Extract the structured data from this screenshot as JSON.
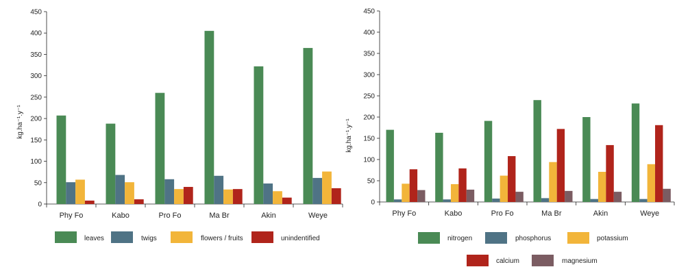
{
  "chart_data": [
    {
      "type": "bar",
      "categories": [
        "Phy Fo",
        "Kabo",
        "Pro Fo",
        "Ma Br",
        "Akin",
        "Weye"
      ],
      "ylabel": "kg.ha⁻¹.y⁻¹",
      "ylim": [
        0,
        450
      ],
      "yticks": [
        0,
        50,
        100,
        150,
        200,
        250,
        300,
        350,
        400,
        450
      ],
      "grid": false,
      "legend_position": "bottom",
      "series": [
        {
          "name": "leaves",
          "color": "#4a8a55",
          "values": [
            207,
            188,
            260,
            405,
            322,
            365
          ]
        },
        {
          "name": "twigs",
          "color": "#4f7385",
          "values": [
            51,
            68,
            58,
            66,
            48,
            61
          ]
        },
        {
          "name": "flowers / fruits",
          "color": "#f2b53a",
          "values": [
            57,
            51,
            35,
            34,
            30,
            76
          ]
        },
        {
          "name": "unindentified",
          "color": "#b0241b",
          "values": [
            8,
            11,
            40,
            35,
            15,
            37
          ]
        }
      ]
    },
    {
      "type": "bar",
      "categories": [
        "Phy Fo",
        "Kabo",
        "Pro Fo",
        "Ma Br",
        "Akin",
        "Weye"
      ],
      "ylabel": "kg.ha⁻¹.y⁻¹",
      "ylim": [
        0,
        450
      ],
      "yticks": [
        0,
        50,
        100,
        150,
        200,
        250,
        300,
        350,
        400,
        450
      ],
      "grid": false,
      "legend_position": "bottom",
      "series": [
        {
          "name": "nitrogen",
          "color": "#4a8a55",
          "values": [
            170,
            163,
            191,
            240,
            200,
            232
          ]
        },
        {
          "name": "phosphorus",
          "color": "#4f7385",
          "values": [
            6,
            6,
            8,
            9,
            7,
            7
          ]
        },
        {
          "name": "potassium",
          "color": "#f2b53a",
          "values": [
            43,
            42,
            62,
            94,
            71,
            89
          ]
        },
        {
          "name": "calcium",
          "color": "#b0241b",
          "values": [
            77,
            79,
            108,
            172,
            134,
            181
          ]
        },
        {
          "name": "magnesium",
          "color": "#7b5c62",
          "values": [
            28,
            29,
            24,
            26,
            24,
            31
          ]
        }
      ]
    }
  ]
}
